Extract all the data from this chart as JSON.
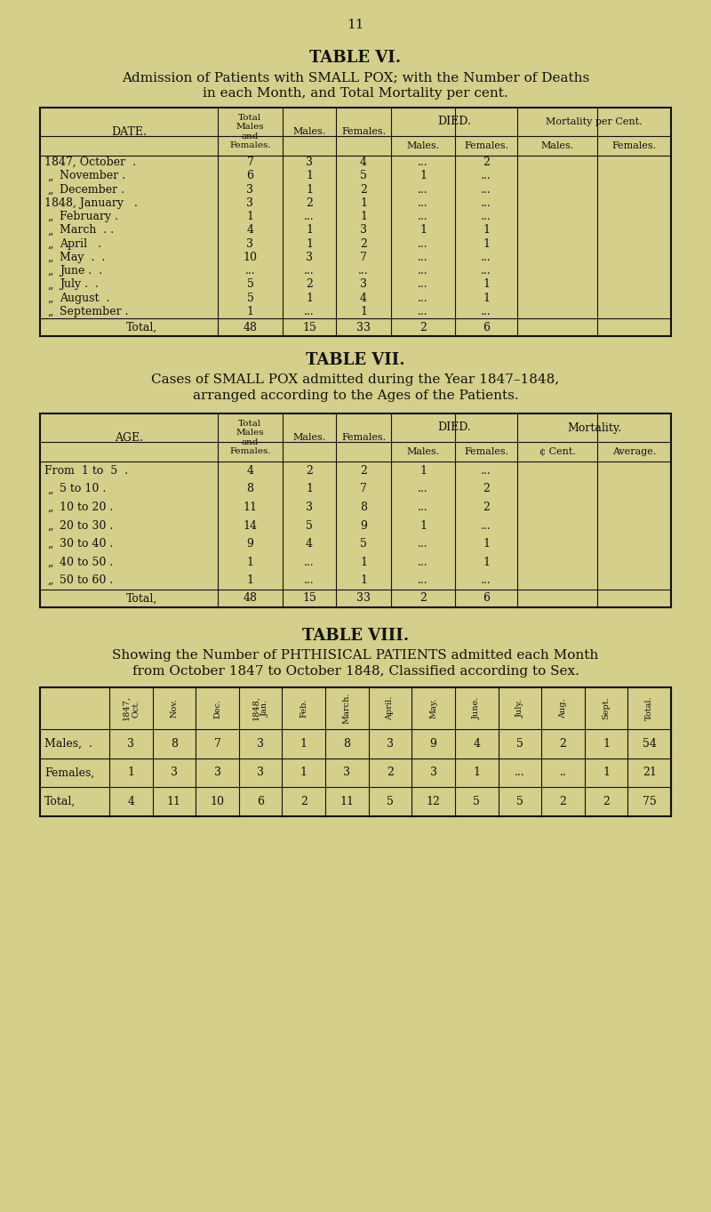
{
  "bg_color": "#d4cf8a",
  "page_number": "11",
  "table6_title": "TABLE VI.",
  "table6_subtitle1": "Admission of Patients with SMALL POX; with the Number of Deaths",
  "table6_subtitle2": "in each Month, and Total Mortality per cent.",
  "table6_rows": [
    [
      "1847, October  .",
      "7",
      "3",
      "4",
      "...",
      "2",
      "",
      ""
    ],
    [
      "„  November .",
      "6",
      "1",
      "5",
      "1",
      "...",
      "",
      ""
    ],
    [
      "„  December .",
      "3",
      "1",
      "2",
      "...",
      "...",
      "",
      ""
    ],
    [
      "1848, January   .",
      "3",
      "2",
      "1",
      "...",
      "...",
      "",
      ""
    ],
    [
      "„  February .",
      "1",
      "...",
      "1",
      "...",
      "...",
      "",
      ""
    ],
    [
      "„  March  . .",
      "4",
      "1",
      "3",
      "1",
      "1",
      "",
      ""
    ],
    [
      "„  April   .",
      "3",
      "1",
      "2",
      "...",
      "1",
      "",
      ""
    ],
    [
      "„  May  .  .",
      "10",
      "3",
      "7",
      "...",
      "...",
      "",
      ""
    ],
    [
      "„  June .  .",
      "...",
      "...",
      "...",
      "...",
      "...",
      "",
      ""
    ],
    [
      "„  July .  .",
      "5",
      "2",
      "3",
      "...",
      "1",
      "",
      ""
    ],
    [
      "„  August  .",
      "5",
      "1",
      "4",
      "...",
      "1",
      "",
      ""
    ],
    [
      "„  September .",
      "1",
      "...",
      "1",
      "...",
      "...",
      "",
      ""
    ]
  ],
  "table6_total": [
    "Total,",
    "48",
    "15",
    "33",
    "2",
    "6",
    "",
    ""
  ],
  "table7_title": "TABLE VII.",
  "table7_subtitle1": "Cases of SMALL POX admitted during the Year 1847–1848,",
  "table7_subtitle2": "arranged according to the Ages of the Patients.",
  "table7_rows": [
    [
      "From  1 to  5  .",
      "4",
      "2",
      "2",
      "1",
      "...",
      "",
      ""
    ],
    [
      "„    5 to 10 .",
      "8",
      "1",
      "7",
      "...",
      "2",
      "",
      ""
    ],
    [
      "„   10 to 20 .",
      "11",
      "3",
      "8",
      "...",
      "2",
      "",
      ""
    ],
    [
      "„   20 to 30 .",
      "14",
      "5",
      "9",
      "1",
      "...",
      "",
      ""
    ],
    [
      "„   30 to 40 .",
      "9",
      "4",
      "5",
      "...",
      "1",
      "",
      ""
    ],
    [
      "„   40 to 50 .",
      "1",
      "...",
      "1",
      "...",
      "1",
      "",
      ""
    ],
    [
      "„   50 to 60 .",
      "1",
      "...",
      "1",
      "...",
      "...",
      "",
      ""
    ]
  ],
  "table7_total": [
    "Total,",
    "48",
    "15",
    "33",
    "2",
    "6",
    "",
    ""
  ],
  "table8_title": "TABLE VIII.",
  "table8_subtitle1": "Showing the Number of PHTHISICAL PATIENTS admitted each Month",
  "table8_subtitle2": "from October 1847 to October 1848, Classified according to Sex.",
  "table8_col_headers": [
    "1847,\nOct.",
    "Nov.",
    "Dec.",
    "1848,\nJan.",
    "Feb.",
    "March.",
    "April.",
    "May.",
    "June.",
    "July.",
    "Aug.",
    "Sept.",
    "Total."
  ],
  "table8_rows": [
    [
      "Males,  .",
      "3",
      "8",
      "7",
      "3",
      "1",
      "8",
      "3",
      "9",
      "4",
      "5",
      "2",
      "1",
      "54"
    ],
    [
      "Females,",
      "1",
      "3",
      "3",
      "3",
      "1",
      "3",
      "2",
      "3",
      "1",
      "...",
      "..",
      "1",
      "21"
    ]
  ],
  "table8_total": [
    "Total,",
    "4",
    "11",
    "10",
    "6",
    "2",
    "11",
    "5",
    "12",
    "5",
    "5",
    "2",
    "2",
    "75"
  ]
}
